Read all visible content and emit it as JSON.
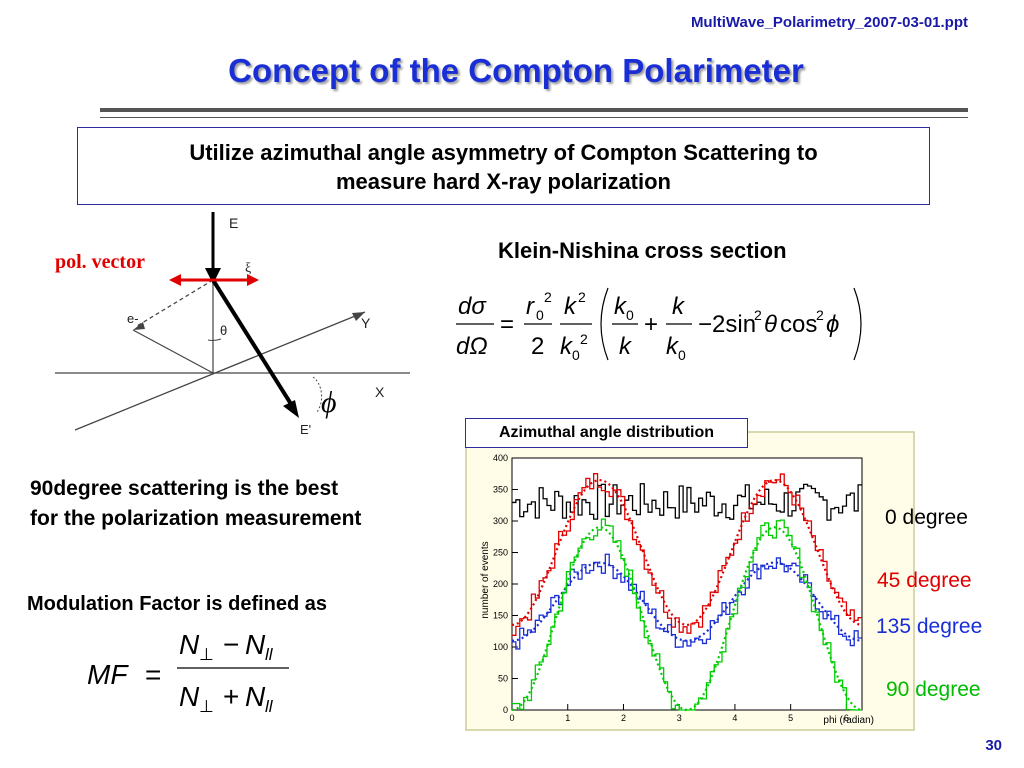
{
  "header": {
    "file_name": "MultiWave_Polarimetry_2007-03-01.ppt",
    "title": "Concept  of the Compton Polarimeter"
  },
  "statement": {
    "line1": "Utilize azimuthal angle asymmetry of Compton Scattering to",
    "line2": "measure hard X-ray polarization"
  },
  "diagram": {
    "pol_vector_label": "pol. vector",
    "E": "E",
    "xi": "ξ",
    "e_minus": "e-",
    "theta": "θ",
    "Y": "Y",
    "X": "X",
    "E_prime": "E'",
    "phi": "ϕ"
  },
  "klein_nishina": {
    "title": "Klein-Nishina cross section"
  },
  "notes": {
    "best_line1": "90degree scattering is the best",
    "best_line2": "for the polarization measurement",
    "mf_defined": "Modulation Factor is defined as"
  },
  "chart_data": {
    "type": "line",
    "title": "Azimuthal angle distribution",
    "xlabel": "phi (radian)",
    "ylabel": "number of events",
    "xlim": [
      0,
      6.28
    ],
    "ylim": [
      0,
      400
    ],
    "x_ticks": [
      "0",
      "1",
      "2",
      "3",
      "4",
      "5",
      "6"
    ],
    "y_ticks": [
      "0",
      "50",
      "100",
      "150",
      "200",
      "250",
      "300",
      "350",
      "400"
    ],
    "grid": false,
    "legend": "right",
    "series": [
      {
        "name": "0 degree",
        "color": "#000000",
        "mean": 330,
        "amplitude": 0
      },
      {
        "name": "45 degree",
        "color": "#e00000",
        "mean": 250,
        "amplitude": 115
      },
      {
        "name": "135 degree",
        "color": "#1a2ed6",
        "mean": 172,
        "amplitude": 62
      },
      {
        "name": "90 degree",
        "color": "#00cc00",
        "mean": 145,
        "amplitude": 145
      }
    ]
  },
  "page": {
    "number": "30"
  }
}
